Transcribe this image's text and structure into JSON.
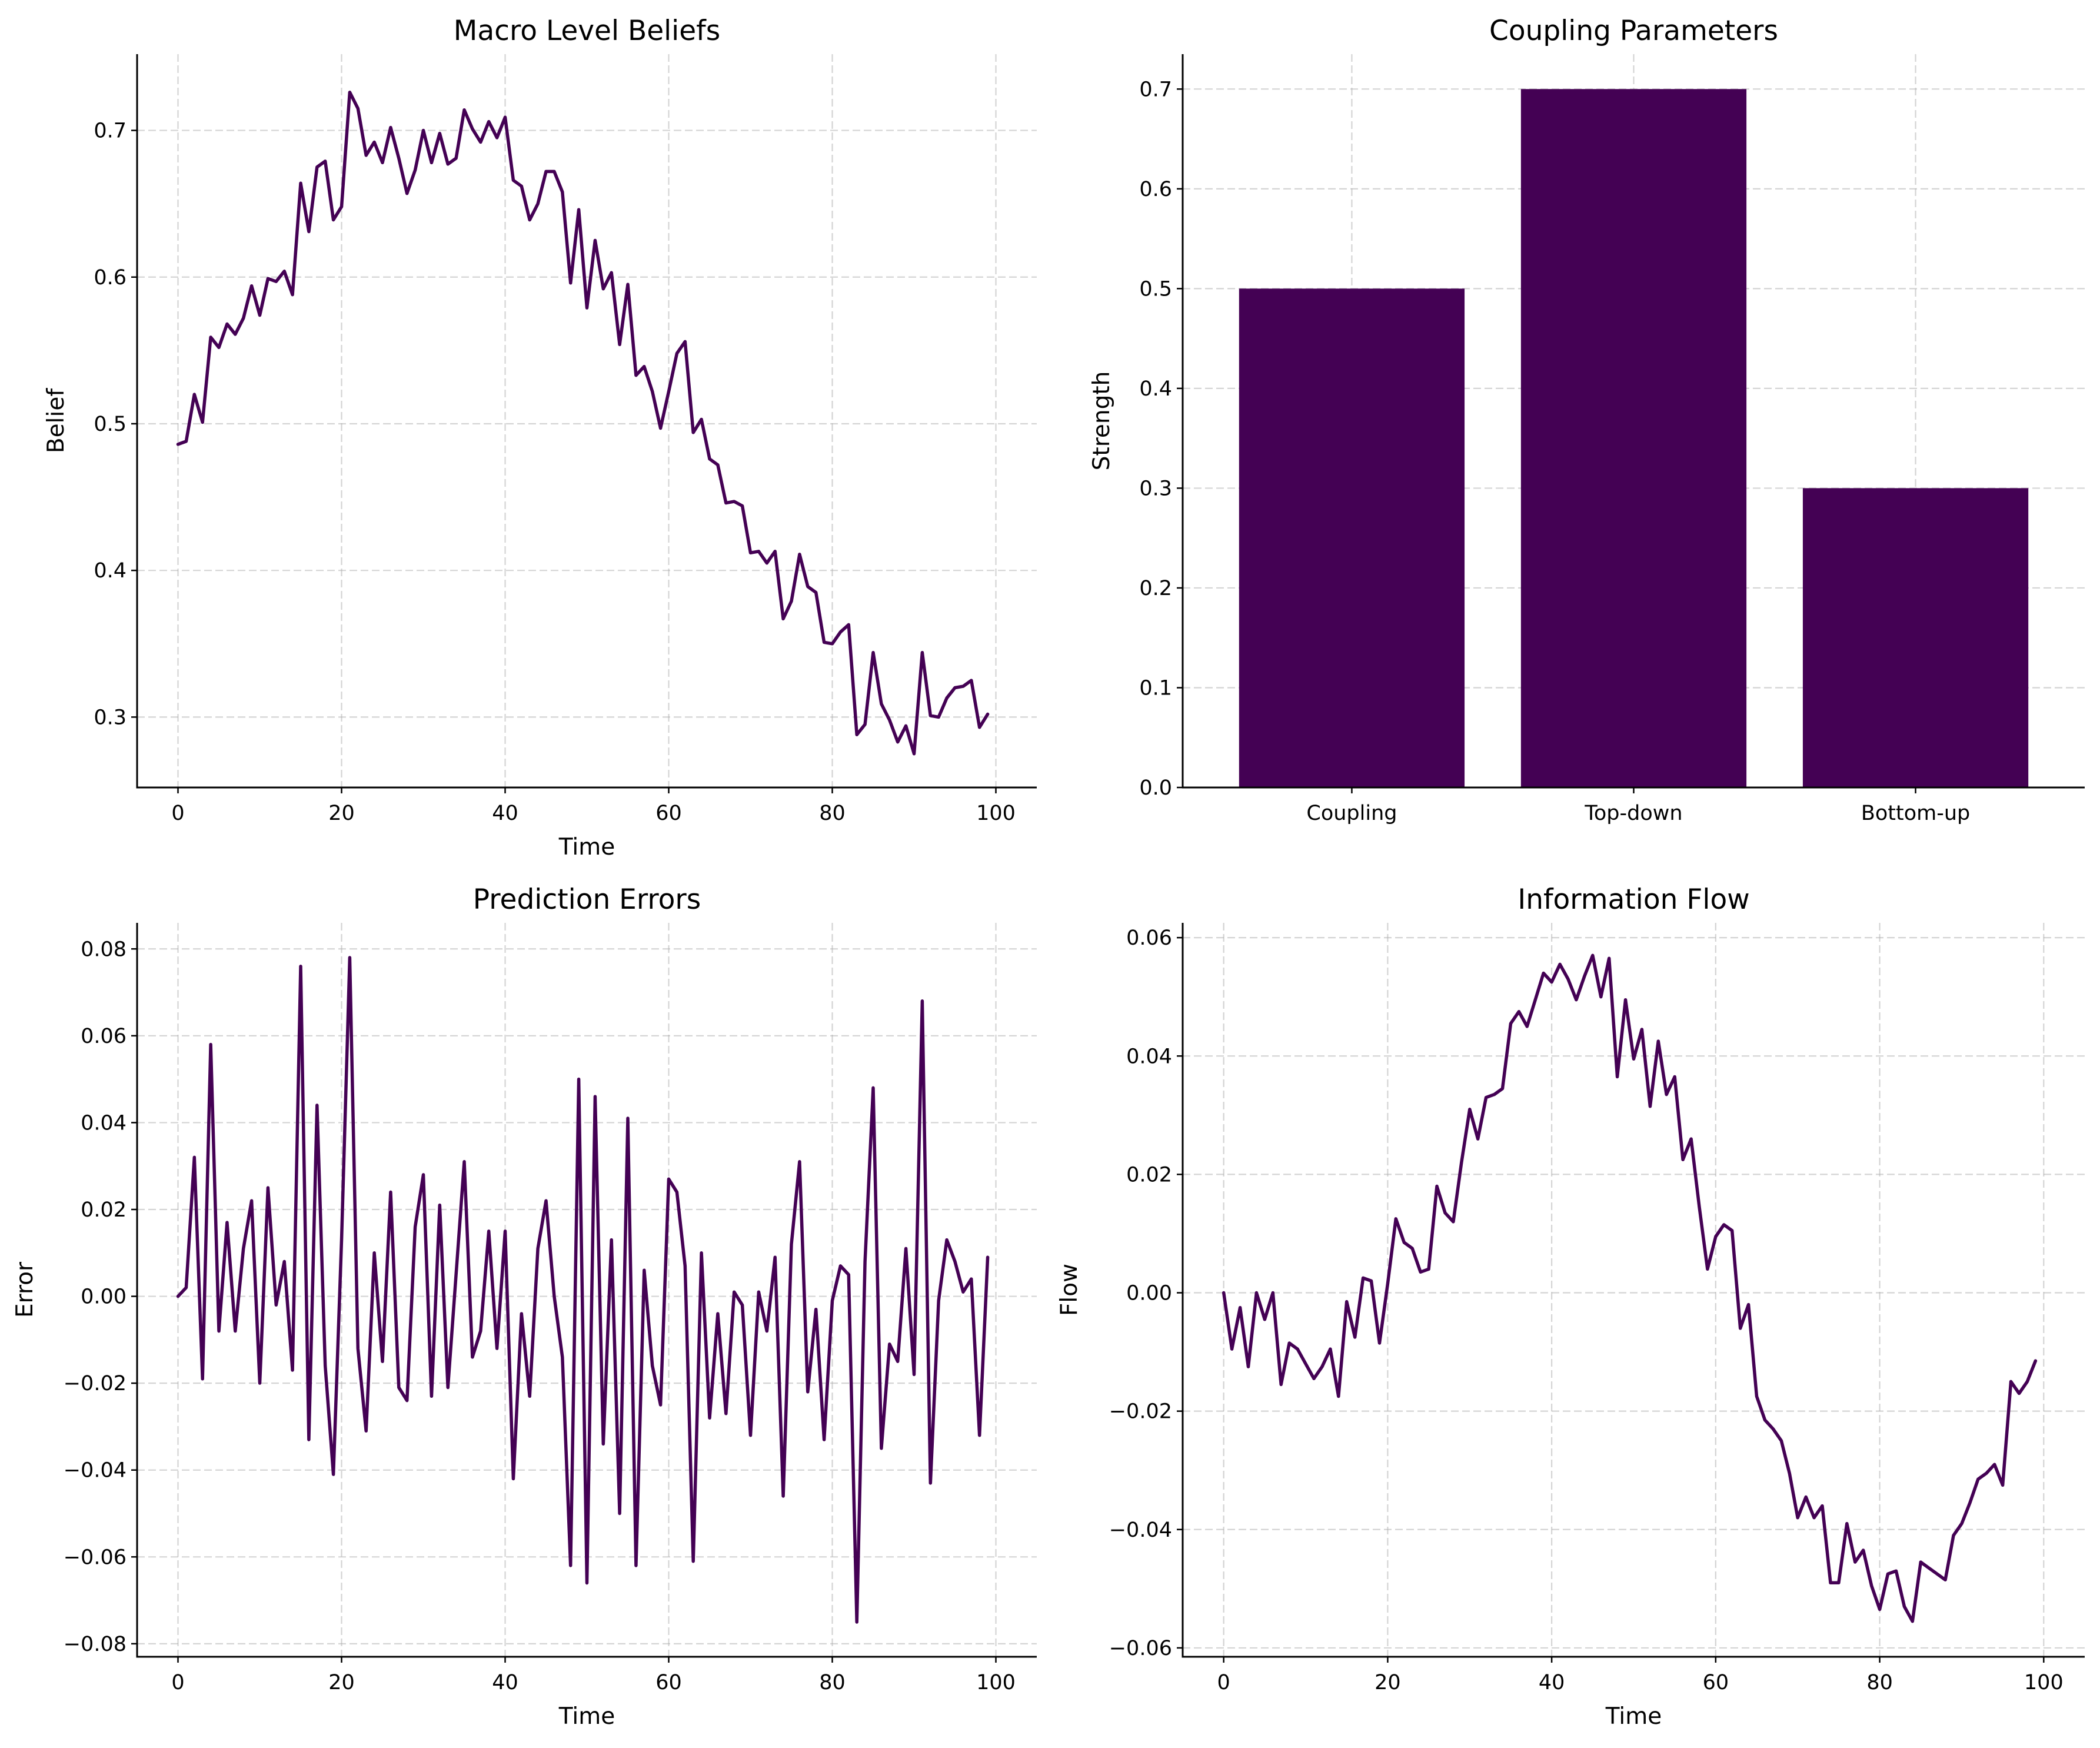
{
  "colors": {
    "series": "#440154",
    "grid": "#b0b0b0",
    "axis": "#000000"
  },
  "chart_data": [
    {
      "type": "line",
      "title": "Macro Level Beliefs",
      "xlabel": "Time",
      "ylabel": "Belief",
      "xlim": [
        -5,
        105
      ],
      "ylim": [
        0.252,
        0.752
      ],
      "xticks": [
        0,
        20,
        40,
        60,
        80,
        100
      ],
      "yticks": [
        0.3,
        0.4,
        0.5,
        0.6,
        0.7
      ],
      "ytick_labels": [
        "0.3",
        "0.4",
        "0.5",
        "0.6",
        "0.7"
      ],
      "grid": true,
      "values": [
        0.486,
        0.488,
        0.52,
        0.501,
        0.559,
        0.552,
        0.568,
        0.561,
        0.572,
        0.594,
        0.574,
        0.599,
        0.597,
        0.604,
        0.588,
        0.664,
        0.631,
        0.675,
        0.679,
        0.639,
        0.648,
        0.726,
        0.715,
        0.683,
        0.692,
        0.678,
        0.702,
        0.681,
        0.657,
        0.673,
        0.7,
        0.678,
        0.698,
        0.677,
        0.681,
        0.714,
        0.701,
        0.692,
        0.706,
        0.695,
        0.709,
        0.666,
        0.662,
        0.639,
        0.65,
        0.672,
        0.672,
        0.658,
        0.596,
        0.646,
        0.579,
        0.625,
        0.592,
        0.603,
        0.554,
        0.595,
        0.533,
        0.539,
        0.522,
        0.497,
        0.522,
        0.548,
        0.556,
        0.494,
        0.503,
        0.476,
        0.472,
        0.446,
        0.447,
        0.444,
        0.412,
        0.413,
        0.405,
        0.413,
        0.367,
        0.379,
        0.411,
        0.389,
        0.385,
        0.351,
        0.35,
        0.358,
        0.363,
        0.288,
        0.295,
        0.344,
        0.309,
        0.298,
        0.283,
        0.294,
        0.275,
        0.344,
        0.301,
        0.3,
        0.313,
        0.32,
        0.321,
        0.325,
        0.293,
        0.302
      ]
    },
    {
      "type": "bar",
      "title": "Coupling Parameters",
      "xlabel": "",
      "ylabel": "Strength",
      "categories": [
        "Coupling",
        "Top-down",
        "Bottom-up"
      ],
      "values": [
        0.5,
        0.7,
        0.3
      ],
      "ylim": [
        0,
        0.735
      ],
      "yticks": [
        0.0,
        0.1,
        0.2,
        0.3,
        0.4,
        0.5,
        0.6,
        0.7
      ],
      "ytick_labels": [
        "0.0",
        "0.1",
        "0.2",
        "0.3",
        "0.4",
        "0.5",
        "0.6",
        "0.7"
      ],
      "grid": true
    },
    {
      "type": "line",
      "title": "Prediction Errors",
      "xlabel": "Time",
      "ylabel": "Error",
      "xlim": [
        -5,
        105
      ],
      "ylim": [
        -0.083,
        0.086
      ],
      "xticks": [
        0,
        20,
        40,
        60,
        80,
        100
      ],
      "yticks": [
        -0.08,
        -0.06,
        -0.04,
        -0.02,
        0.0,
        0.02,
        0.04,
        0.06,
        0.08
      ],
      "ytick_labels": [
        "−0.08",
        "−0.06",
        "−0.04",
        "−0.02",
        "0.00",
        "0.02",
        "0.04",
        "0.06",
        "0.08"
      ],
      "grid": true,
      "values": [
        0.0,
        0.002,
        0.032,
        -0.019,
        0.058,
        -0.008,
        0.017,
        -0.008,
        0.011,
        0.022,
        -0.02,
        0.025,
        -0.002,
        0.008,
        -0.017,
        0.076,
        -0.033,
        0.044,
        -0.016,
        -0.041,
        0.013,
        0.078,
        -0.012,
        -0.031,
        0.01,
        -0.015,
        0.024,
        -0.021,
        -0.024,
        0.016,
        0.028,
        -0.023,
        0.021,
        -0.021,
        0.005,
        0.031,
        -0.014,
        -0.008,
        0.015,
        -0.012,
        0.015,
        -0.042,
        -0.004,
        -0.023,
        0.011,
        0.022,
        0.0,
        -0.014,
        -0.062,
        0.05,
        -0.066,
        0.046,
        -0.034,
        0.013,
        -0.05,
        0.041,
        -0.062,
        0.006,
        -0.016,
        -0.025,
        0.027,
        0.024,
        0.007,
        -0.061,
        0.01,
        -0.028,
        -0.004,
        -0.027,
        0.001,
        -0.002,
        -0.032,
        0.001,
        -0.008,
        0.009,
        -0.046,
        0.012,
        0.031,
        -0.022,
        -0.003,
        -0.033,
        -0.001,
        0.007,
        0.005,
        -0.075,
        0.008,
        0.048,
        -0.035,
        -0.011,
        -0.015,
        0.011,
        -0.018,
        0.068,
        -0.043,
        -0.001,
        0.013,
        0.008,
        0.001,
        0.004,
        -0.032,
        0.009
      ]
    },
    {
      "type": "line",
      "title": "Information Flow",
      "xlabel": "Time",
      "ylabel": "Flow",
      "xlim": [
        -5,
        105
      ],
      "ylim": [
        -0.0615,
        0.0625
      ],
      "xticks": [
        0,
        20,
        40,
        60,
        80,
        100
      ],
      "yticks": [
        -0.06,
        -0.04,
        -0.02,
        0.0,
        0.02,
        0.04,
        0.06
      ],
      "ytick_labels": [
        "−0.06",
        "−0.04",
        "−0.02",
        "0.00",
        "0.02",
        "0.04",
        "0.06"
      ],
      "grid": true,
      "values": [
        0.0,
        -0.0095,
        -0.0025,
        -0.0125,
        0.0,
        -0.0045,
        0.0,
        -0.0155,
        -0.0085,
        -0.0095,
        -0.012,
        -0.0145,
        -0.0125,
        -0.0095,
        -0.0175,
        -0.0015,
        -0.0075,
        0.0025,
        0.002,
        -0.0085,
        0.0015,
        0.0125,
        0.0085,
        0.0075,
        0.0035,
        0.004,
        0.018,
        0.0135,
        0.012,
        0.022,
        0.031,
        0.026,
        0.033,
        0.0335,
        0.0345,
        0.0455,
        0.0475,
        0.045,
        0.0495,
        0.054,
        0.0525,
        0.0555,
        0.053,
        0.0495,
        0.0535,
        0.057,
        0.05,
        0.0565,
        0.0365,
        0.0495,
        0.0395,
        0.0445,
        0.0315,
        0.0425,
        0.0335,
        0.0365,
        0.0225,
        0.026,
        0.0145,
        0.004,
        0.0095,
        0.0115,
        0.0105,
        -0.006,
        -0.002,
        -0.0175,
        -0.0215,
        -0.023,
        -0.025,
        -0.0305,
        -0.038,
        -0.0345,
        -0.038,
        -0.036,
        -0.049,
        -0.049,
        -0.039,
        -0.0455,
        -0.0435,
        -0.0495,
        -0.0535,
        -0.0475,
        -0.047,
        -0.053,
        -0.0555,
        -0.0455,
        -0.0465,
        -0.0475,
        -0.0485,
        -0.041,
        -0.039,
        -0.0355,
        -0.0315,
        -0.0305,
        -0.029,
        -0.0325,
        -0.015,
        -0.017,
        -0.015,
        -0.0115
      ]
    }
  ]
}
